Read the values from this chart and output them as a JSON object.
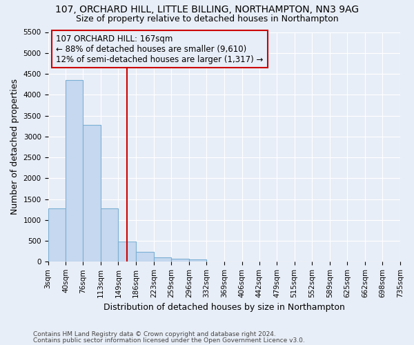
{
  "title_line1": "107, ORCHARD HILL, LITTLE BILLING, NORTHAMPTON, NN3 9AG",
  "title_line2": "Size of property relative to detached houses in Northampton",
  "xlabel": "Distribution of detached houses by size in Northampton",
  "ylabel": "Number of detached properties",
  "bar_color": "#c5d8ef",
  "bar_edge_color": "#7bafd4",
  "vline_color": "#cc0000",
  "vline_x": 167,
  "annotation_line1": "107 ORCHARD HILL: 167sqm",
  "annotation_line2": "← 88% of detached houses are smaller (9,610)",
  "annotation_line3": "12% of semi-detached houses are larger (1,317) →",
  "annotation_box_color": "#cc0000",
  "footnote1": "Contains HM Land Registry data © Crown copyright and database right 2024.",
  "footnote2": "Contains public sector information licensed under the Open Government Licence v3.0.",
  "bin_edges": [
    3,
    40,
    76,
    113,
    149,
    186,
    223,
    259,
    296,
    332,
    369,
    406,
    442,
    479,
    515,
    552,
    589,
    625,
    662,
    698,
    735
  ],
  "bin_counts": [
    1270,
    4350,
    3280,
    1280,
    480,
    235,
    100,
    65,
    50,
    0,
    0,
    0,
    0,
    0,
    0,
    0,
    0,
    0,
    0,
    0
  ],
  "ylim": [
    0,
    5500
  ],
  "yticks": [
    0,
    500,
    1000,
    1500,
    2000,
    2500,
    3000,
    3500,
    4000,
    4500,
    5000,
    5500
  ],
  "background_color": "#e8eef7",
  "grid_color": "#ffffff",
  "title_fontsize": 10,
  "subtitle_fontsize": 9,
  "axis_label_fontsize": 9,
  "tick_fontsize": 7.5,
  "annotation_fontsize": 8.5,
  "footnote_fontsize": 6.5
}
